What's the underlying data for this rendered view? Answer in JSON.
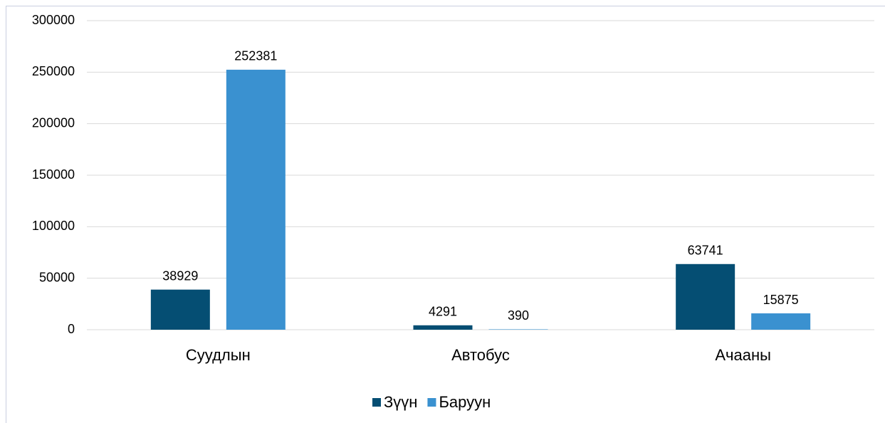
{
  "chart_data": {
    "type": "bar",
    "categories": [
      "Суудлын",
      "Автобус",
      "Ачааны"
    ],
    "series": [
      {
        "name": "Зүүн",
        "color": "#054e73",
        "values": [
          38929,
          4291,
          63741
        ]
      },
      {
        "name": "Баруун",
        "color": "#3a91d0",
        "values": [
          252381,
          390,
          15875
        ]
      }
    ],
    "ylim": [
      0,
      300000
    ],
    "yticks": [
      0,
      50000,
      100000,
      150000,
      200000,
      250000,
      300000
    ],
    "grid": true,
    "legend": "bottom"
  }
}
